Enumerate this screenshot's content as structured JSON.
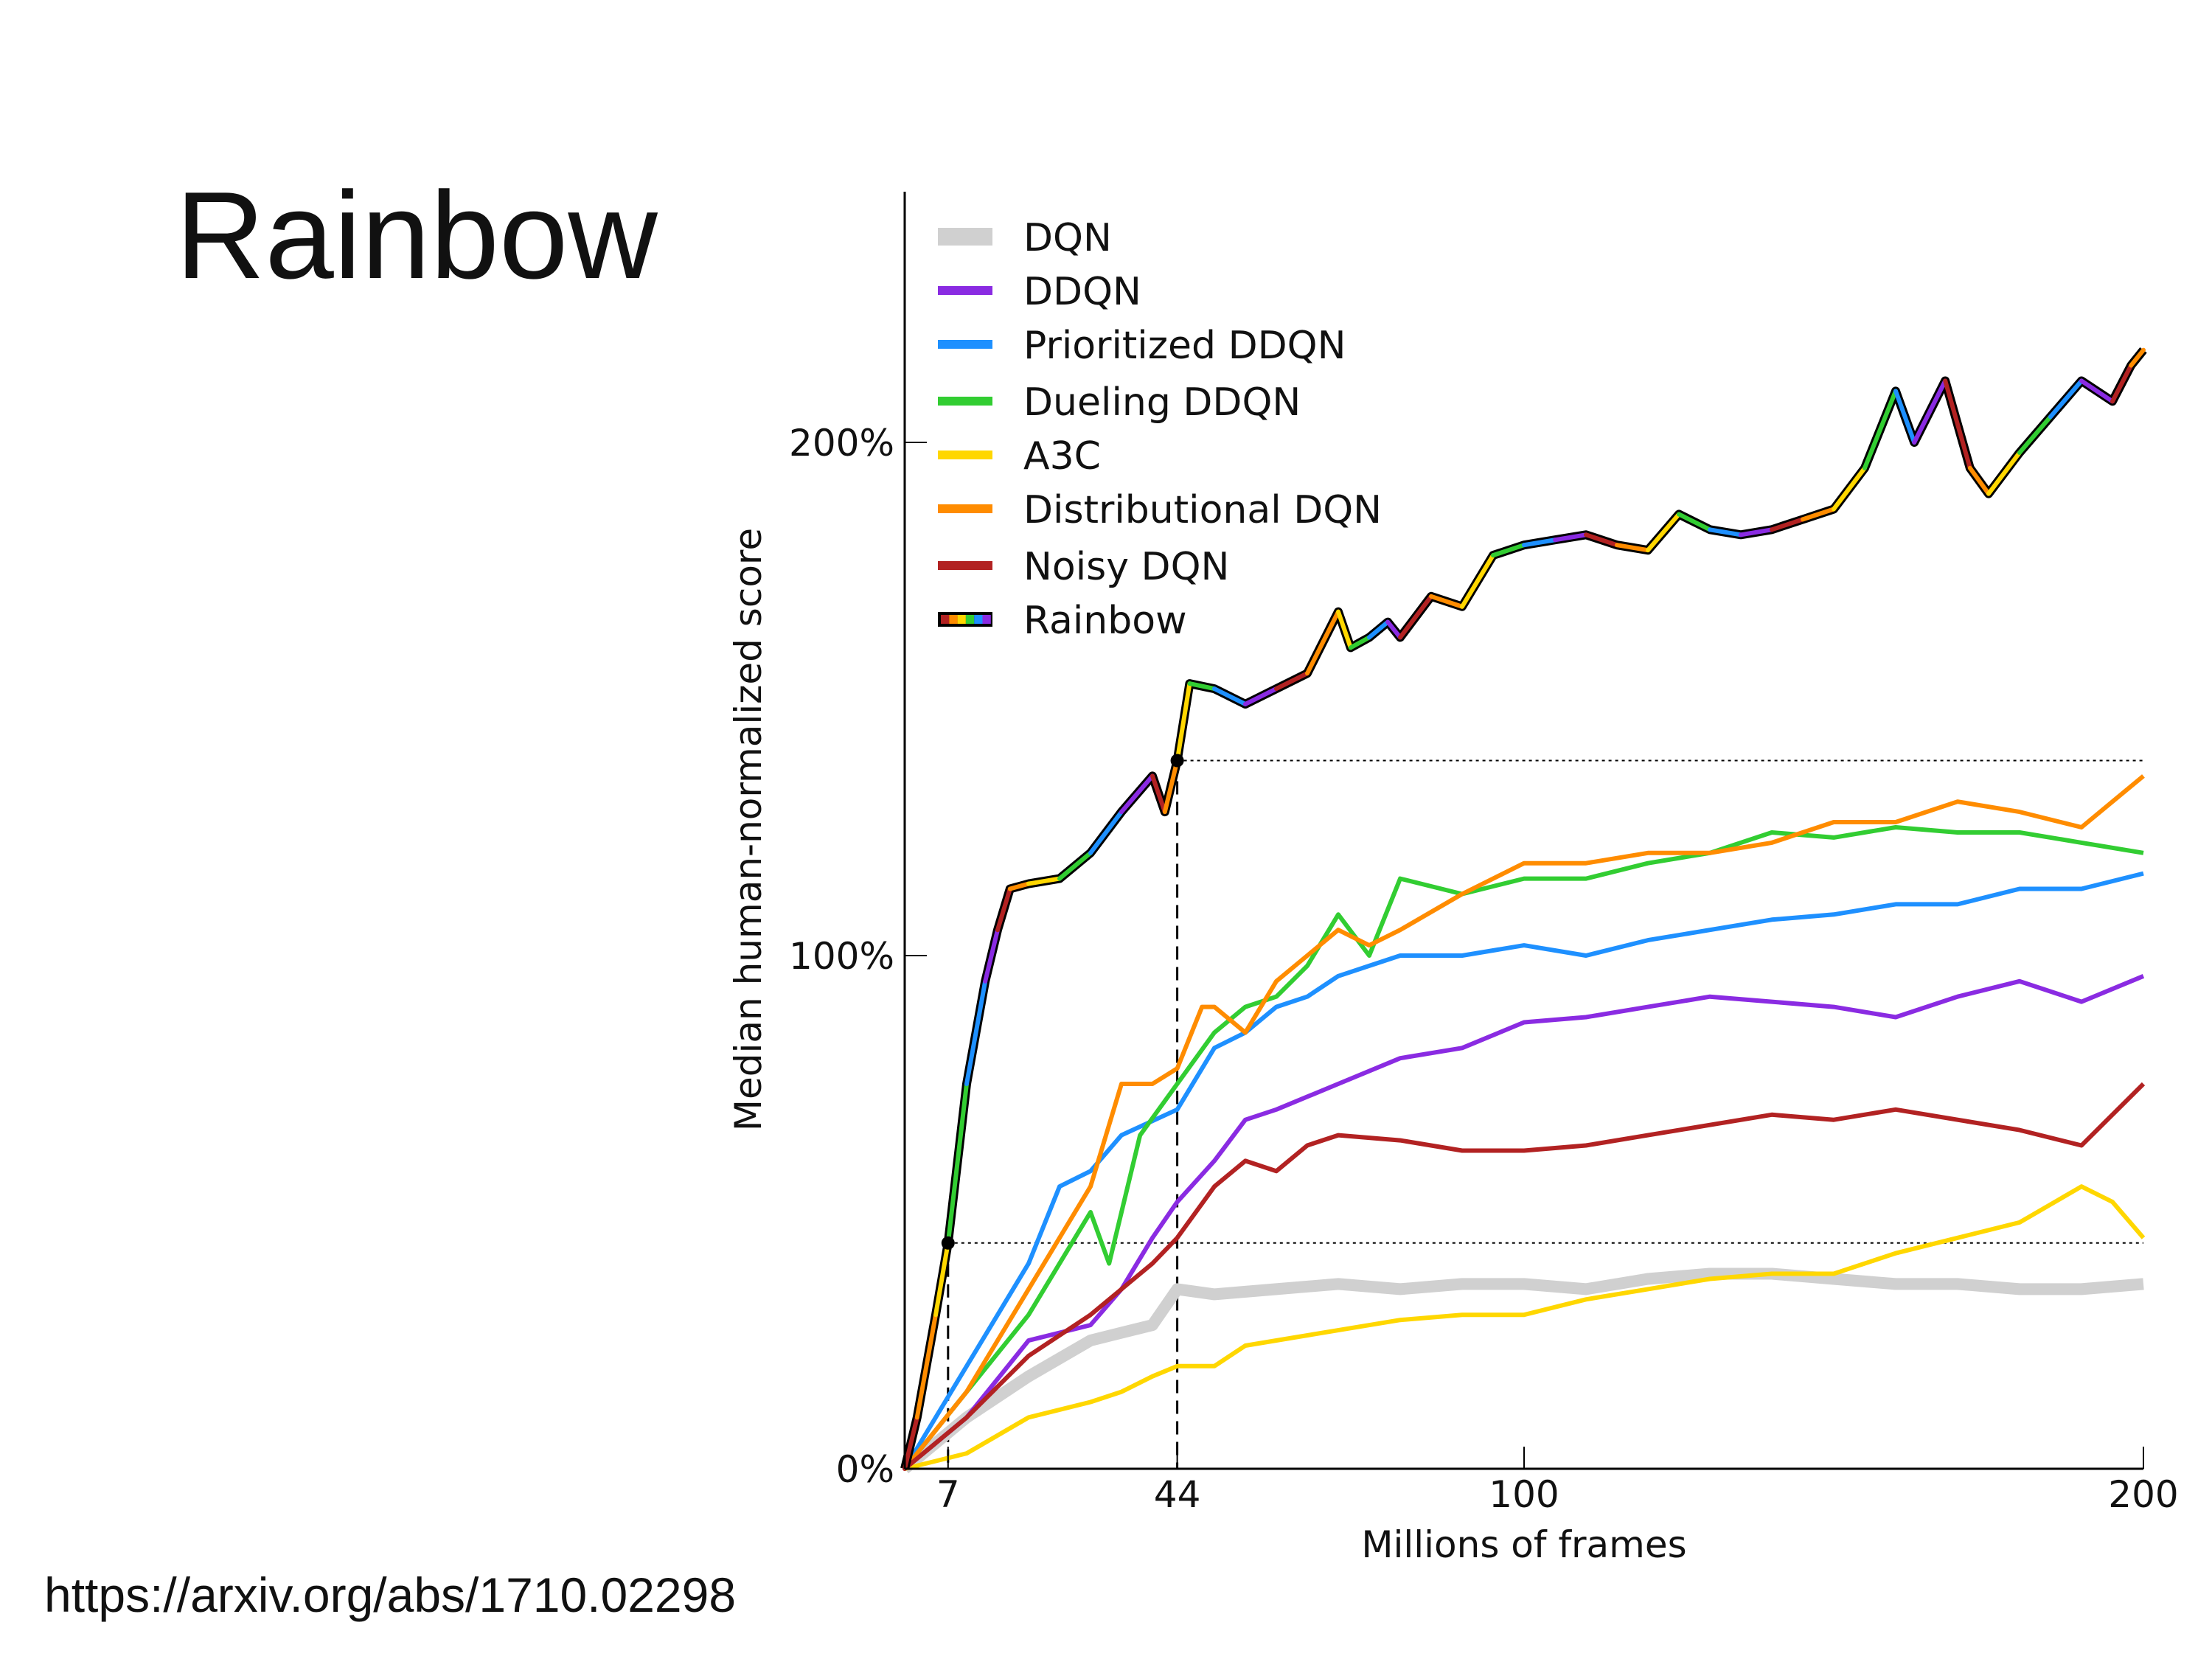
{
  "slide": {
    "title": "Rainbow",
    "url": "https://arxiv.org/abs/1710.02298"
  },
  "chart_data": {
    "type": "line",
    "xlabel": "Millions of frames",
    "ylabel": "Median human-normalized score",
    "xlim": [
      0,
      200
    ],
    "ylim": [
      0,
      230
    ],
    "xticks": [
      {
        "value": 7,
        "label": "7"
      },
      {
        "value": 44,
        "label": "44"
      },
      {
        "value": 100,
        "label": "100"
      },
      {
        "value": 200,
        "label": "200"
      }
    ],
    "yticks": [
      {
        "value": 0,
        "label": "0%"
      },
      {
        "value": 100,
        "label": "100%"
      },
      {
        "value": 200,
        "label": "200%"
      }
    ],
    "grid": false,
    "legend_position": "top-left",
    "reference_markers": [
      {
        "x": 7,
        "y": 44
      },
      {
        "x": 44,
        "y": 138
      }
    ],
    "series": [
      {
        "name": "DQN",
        "color": "#d0d0d0",
        "x": [
          0,
          10,
          20,
          30,
          40,
          44,
          50,
          60,
          70,
          80,
          90,
          100,
          110,
          120,
          130,
          140,
          150,
          160,
          170,
          180,
          190,
          200
        ],
        "y": [
          0,
          10,
          18,
          25,
          28,
          35,
          34,
          35,
          36,
          35,
          36,
          36,
          35,
          37,
          38,
          38,
          37,
          36,
          36,
          35,
          35,
          36
        ]
      },
      {
        "name": "DDQN",
        "color": "#8a2be2",
        "x": [
          0,
          10,
          20,
          30,
          35,
          40,
          44,
          50,
          55,
          60,
          70,
          80,
          90,
          100,
          110,
          120,
          130,
          140,
          150,
          160,
          170,
          180,
          190,
          200
        ],
        "y": [
          0,
          10,
          25,
          28,
          35,
          45,
          52,
          60,
          68,
          70,
          75,
          80,
          82,
          87,
          88,
          90,
          92,
          91,
          90,
          88,
          92,
          95,
          91,
          96
        ]
      },
      {
        "name": "Prioritized DDQN",
        "color": "#1e90ff",
        "x": [
          0,
          10,
          20,
          25,
          30,
          35,
          44,
          50,
          55,
          60,
          65,
          70,
          75,
          80,
          90,
          100,
          110,
          120,
          130,
          140,
          150,
          160,
          170,
          180,
          190,
          200
        ],
        "y": [
          0,
          20,
          40,
          55,
          58,
          65,
          70,
          82,
          85,
          90,
          92,
          96,
          98,
          100,
          100,
          102,
          100,
          103,
          105,
          107,
          108,
          110,
          110,
          113,
          113,
          116
        ]
      },
      {
        "name": "Dueling DDQN",
        "color": "#32cd32",
        "x": [
          0,
          10,
          20,
          30,
          33,
          38,
          44,
          50,
          55,
          60,
          65,
          70,
          75,
          80,
          90,
          100,
          110,
          120,
          130,
          140,
          150,
          160,
          170,
          180,
          190,
          200
        ],
        "y": [
          0,
          15,
          30,
          50,
          40,
          65,
          75,
          85,
          90,
          92,
          98,
          108,
          100,
          115,
          112,
          115,
          115,
          118,
          120,
          124,
          123,
          125,
          124,
          124,
          122,
          120
        ]
      },
      {
        "name": "A3C",
        "color": "#ffd700",
        "x": [
          0,
          10,
          20,
          30,
          35,
          40,
          44,
          50,
          55,
          60,
          70,
          80,
          90,
          100,
          110,
          120,
          130,
          140,
          150,
          160,
          170,
          180,
          190,
          195,
          200
        ],
        "y": [
          0,
          3,
          10,
          13,
          15,
          18,
          20,
          20,
          24,
          25,
          27,
          29,
          30,
          30,
          33,
          35,
          37,
          38,
          38,
          42,
          45,
          48,
          55,
          52,
          45
        ]
      },
      {
        "name": "Distributional DQN",
        "color": "#ff8c00",
        "x": [
          0,
          10,
          20,
          30,
          35,
          40,
          44,
          48,
          50,
          55,
          60,
          65,
          70,
          75,
          80,
          90,
          100,
          110,
          120,
          130,
          140,
          150,
          160,
          170,
          180,
          190,
          195,
          200
        ],
        "y": [
          0,
          15,
          35,
          55,
          75,
          75,
          78,
          90,
          90,
          85,
          95,
          100,
          105,
          102,
          105,
          112,
          118,
          118,
          120,
          120,
          122,
          126,
          126,
          130,
          128,
          125,
          130,
          135
        ]
      },
      {
        "name": "Noisy DQN",
        "color": "#b22222",
        "x": [
          0,
          10,
          20,
          30,
          40,
          44,
          50,
          55,
          60,
          65,
          70,
          80,
          90,
          100,
          110,
          120,
          130,
          140,
          150,
          160,
          170,
          180,
          190,
          200
        ],
        "y": [
          0,
          10,
          22,
          30,
          40,
          45,
          55,
          60,
          58,
          63,
          65,
          64,
          62,
          62,
          63,
          65,
          67,
          69,
          68,
          70,
          68,
          66,
          63,
          75
        ]
      },
      {
        "name": "Rainbow",
        "color": "rainbow",
        "x": [
          0,
          2,
          5,
          7,
          10,
          13,
          15,
          17,
          20,
          25,
          30,
          35,
          40,
          42,
          44,
          46,
          50,
          55,
          60,
          65,
          70,
          72,
          75,
          78,
          80,
          85,
          90,
          95,
          100,
          105,
          110,
          115,
          120,
          125,
          130,
          135,
          140,
          145,
          150,
          155,
          160,
          163,
          168,
          172,
          175,
          180,
          185,
          190,
          195,
          198,
          200
        ],
        "y": [
          0,
          10,
          30,
          44,
          75,
          95,
          105,
          113,
          114,
          115,
          120,
          128,
          135,
          128,
          138,
          153,
          152,
          149,
          152,
          155,
          167,
          160,
          162,
          165,
          162,
          170,
          168,
          178,
          180,
          181,
          182,
          180,
          179,
          186,
          183,
          182,
          183,
          185,
          187,
          195,
          210,
          200,
          212,
          195,
          190,
          198,
          205,
          212,
          208,
          215,
          218
        ]
      }
    ]
  }
}
